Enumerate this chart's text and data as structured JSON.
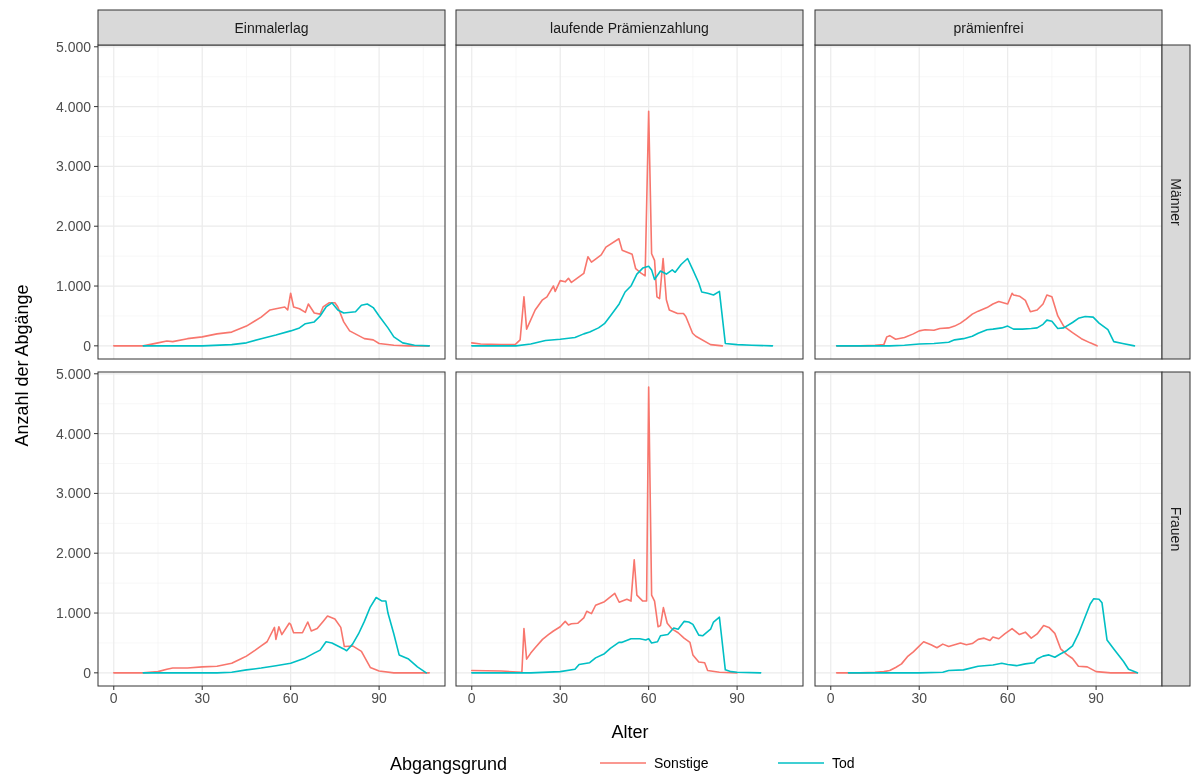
{
  "chart_data": [
    {
      "type": "line",
      "title": "Einmalerlag",
      "xlim": [
        -5.35,
        112.35
      ],
      "ylim": [
        -220,
        5030
      ],
      "xticks": [
        0,
        30,
        60,
        90
      ],
      "yticks": [
        0,
        {
          "value": 1000,
          "label": "1.000"
        },
        {
          "value": 2000,
          "label": "2.000"
        },
        {
          "value": 3000,
          "label": "3.000"
        },
        {
          "value": 4000,
          "label": "4.000"
        },
        {
          "value": 5000,
          "label": "5.000"
        }
      ],
      "grid": true,
      "tick_labels": "y",
      "series": [
        {
          "color": "#f8766d",
          "x": [
            0,
            10,
            15,
            18,
            20,
            25,
            30,
            35,
            40,
            45,
            50,
            53,
            55,
            58,
            59,
            60,
            61,
            63,
            65,
            66,
            68,
            70,
            71,
            73,
            75,
            76,
            78,
            80,
            85,
            88,
            90,
            95,
            100,
            107
          ],
          "values": [
            0,
            0,
            50,
            80,
            70,
            120,
            150,
            200,
            230,
            330,
            480,
            600,
            620,
            650,
            600,
            880,
            650,
            620,
            560,
            700,
            550,
            530,
            650,
            720,
            720,
            650,
            400,
            250,
            120,
            100,
            40,
            10,
            0,
            0
          ]
        },
        {
          "color": "#00bfc4",
          "x": [
            10,
            30,
            40,
            45,
            50,
            55,
            60,
            63,
            65,
            68,
            70,
            72,
            74,
            76,
            78,
            82,
            84,
            86,
            88,
            90,
            93,
            95,
            98,
            102,
            107
          ],
          "values": [
            0,
            0,
            20,
            50,
            120,
            180,
            250,
            300,
            370,
            400,
            500,
            650,
            720,
            600,
            550,
            570,
            680,
            700,
            640,
            500,
            300,
            150,
            50,
            10,
            0
          ]
        }
      ]
    },
    {
      "type": "line",
      "title": "laufende Prämienzahlung",
      "xlim": [
        -5.35,
        112.35
      ],
      "ylim": [
        -220,
        5030
      ],
      "xticks": [
        0,
        30,
        60,
        90
      ],
      "yticks": [
        0,
        1000,
        2000,
        3000,
        4000,
        5000
      ],
      "grid": true,
      "tick_labels": false,
      "series": [
        {
          "color": "#f8766d",
          "x": [
            0,
            3,
            10,
            14.7,
            16.4,
            17.7,
            18.6,
            21.5,
            24,
            25.5,
            27.7,
            28.3,
            30,
            31.7,
            32.8,
            33.8,
            38,
            39.4,
            40.6,
            42,
            43.9,
            45.5,
            49.9,
            51,
            54.4,
            55.6,
            57.3,
            58.8,
            60,
            61,
            62,
            62.8,
            63.7,
            64.9,
            66,
            67,
            69.8,
            71.8,
            72.6,
            74.9,
            76,
            81,
            85
          ],
          "values": [
            50,
            30,
            20,
            20,
            100,
            820,
            280,
            600,
            770,
            820,
            1000,
            910,
            1090,
            1070,
            1130,
            1060,
            1210,
            1490,
            1400,
            1450,
            1520,
            1650,
            1790,
            1600,
            1530,
            1290,
            1220,
            1170,
            3920,
            1540,
            1430,
            820,
            790,
            1460,
            770,
            600,
            540,
            540,
            490,
            210,
            160,
            20,
            0
          ]
        },
        {
          "color": "#00bfc4",
          "x": [
            0,
            15,
            20,
            25,
            30,
            35,
            38,
            40,
            43,
            45,
            47,
            50,
            52,
            54,
            56,
            58,
            60,
            61,
            62,
            64,
            66,
            68,
            69,
            71,
            73.2,
            75,
            77,
            78,
            80,
            82,
            84,
            86,
            90,
            95,
            102
          ],
          "values": [
            0,
            0,
            30,
            90,
            110,
            140,
            200,
            230,
            300,
            370,
            500,
            700,
            900,
            1000,
            1200,
            1300,
            1330,
            1270,
            1110,
            1250,
            1200,
            1270,
            1230,
            1360,
            1460,
            1270,
            1050,
            900,
            880,
            850,
            910,
            40,
            20,
            10,
            0
          ]
        }
      ]
    },
    {
      "type": "line",
      "title": "prämienfrei",
      "subtitle": "Männer",
      "xlim": [
        -5.35,
        112.35
      ],
      "ylim": [
        -220,
        5030
      ],
      "xticks": [
        0,
        30,
        60,
        90
      ],
      "yticks": [
        0,
        1000,
        2000,
        3000,
        4000,
        5000
      ],
      "grid": true,
      "tick_labels": false,
      "series": [
        {
          "color": "#f8766d",
          "x": [
            2,
            10,
            15,
            18,
            19,
            20,
            22,
            25,
            28,
            30,
            32,
            35,
            37,
            40,
            42,
            44,
            46,
            48,
            50,
            53,
            55,
            57,
            60,
            61.5,
            62,
            64,
            66,
            67.7,
            70,
            72,
            73.3,
            75,
            77,
            79,
            82,
            85,
            88,
            90.3
          ],
          "values": [
            0,
            0,
            10,
            20,
            150,
            170,
            110,
            140,
            200,
            250,
            270,
            260,
            290,
            300,
            330,
            380,
            450,
            530,
            580,
            640,
            700,
            740,
            700,
            880,
            850,
            830,
            760,
            570,
            600,
            700,
            850,
            820,
            500,
            330,
            220,
            120,
            50,
            0
          ]
        },
        {
          "color": "#00bfc4",
          "x": [
            2,
            20,
            25,
            30,
            35,
            40,
            42,
            45,
            48,
            50,
            53,
            55,
            58,
            60,
            62,
            65,
            68,
            70,
            72,
            73.3,
            75,
            77,
            79,
            82,
            84,
            86.3,
            89,
            91,
            94,
            96,
            99,
            103
          ],
          "values": [
            0,
            0,
            10,
            30,
            40,
            60,
            100,
            120,
            160,
            210,
            270,
            280,
            300,
            330,
            280,
            280,
            290,
            300,
            360,
            430,
            410,
            290,
            300,
            390,
            460,
            490,
            480,
            380,
            270,
            70,
            40,
            0
          ]
        }
      ]
    },
    {
      "type": "line",
      "ylabel": "Anzahl der Abgänge",
      "xlim": [
        -5.35,
        112.35
      ],
      "ylim": [
        -220,
        5030
      ],
      "xticks": [
        0,
        30,
        60,
        90
      ],
      "yticks": [
        0,
        {
          "value": 1000,
          "label": "1.000"
        },
        {
          "value": 2000,
          "label": "2.000"
        },
        {
          "value": 3000,
          "label": "3.000"
        },
        {
          "value": 4000,
          "label": "4.000"
        },
        {
          "value": 5000,
          "label": "5.000"
        }
      ],
      "grid": true,
      "series": [
        {
          "color": "#f8766d",
          "x": [
            0,
            10,
            15,
            18,
            20,
            25,
            30,
            35,
            40,
            43,
            45,
            48,
            50,
            52,
            54.5,
            55,
            56,
            57,
            59.5,
            60,
            61,
            64,
            65.8,
            67,
            69,
            71,
            72.5,
            75,
            77,
            78.2,
            81,
            84,
            87,
            90,
            95,
            107
          ],
          "values": [
            0,
            0,
            20,
            60,
            80,
            80,
            100,
            110,
            160,
            230,
            280,
            380,
            450,
            520,
            760,
            560,
            770,
            640,
            830,
            810,
            670,
            670,
            850,
            700,
            740,
            860,
            950,
            900,
            760,
            440,
            450,
            360,
            90,
            30,
            0,
            0
          ]
        },
        {
          "color": "#00bfc4",
          "x": [
            10,
            35,
            40,
            45,
            50,
            55,
            60,
            65,
            68,
            70,
            72,
            74,
            76,
            78,
            79,
            81,
            83,
            85,
            87,
            89,
            91,
            92.3,
            93,
            95,
            96.8,
            100,
            103,
            106
          ],
          "values": [
            0,
            0,
            10,
            50,
            80,
            120,
            160,
            250,
            330,
            380,
            520,
            500,
            450,
            400,
            370,
            480,
            650,
            860,
            1100,
            1260,
            1200,
            1200,
            1000,
            650,
            300,
            230,
            100,
            0
          ]
        }
      ]
    },
    {
      "type": "line",
      "xlabel": "Alter",
      "legend_title": "Abgangsgrund",
      "legend": "bottom",
      "xlim": [
        -5.35,
        112.35
      ],
      "ylim": [
        -220,
        5030
      ],
      "xticks": [
        0,
        30,
        60,
        90
      ],
      "yticks": [
        0,
        1000,
        2000,
        3000,
        4000,
        5000
      ],
      "grid": true,
      "tick_labels": "x",
      "series": [
        {
          "name": "Sonstige",
          "color": "#f8766d",
          "x": [
            0,
            10,
            17,
            17.7,
            18.6,
            20,
            21.5,
            24,
            26,
            27.7,
            30,
            31.7,
            32.8,
            33.8,
            36,
            38,
            39,
            40.6,
            42,
            45,
            48.5,
            50,
            52.6,
            54,
            55.1,
            56,
            58,
            59.3,
            60,
            61,
            62,
            63.2,
            64,
            65,
            66.3,
            68,
            70,
            72,
            74,
            75,
            77,
            79,
            80,
            84,
            90
          ],
          "values": [
            40,
            30,
            10,
            740,
            230,
            330,
            420,
            560,
            640,
            700,
            770,
            860,
            800,
            820,
            830,
            920,
            1030,
            990,
            1130,
            1190,
            1330,
            1180,
            1230,
            1200,
            1890,
            1300,
            1200,
            1200,
            4780,
            1300,
            1200,
            770,
            790,
            1090,
            830,
            730,
            670,
            580,
            510,
            300,
            180,
            170,
            40,
            10,
            0
          ]
        },
        {
          "name": "Tod",
          "color": "#00bfc4",
          "x": [
            0,
            20,
            30,
            35,
            36.4,
            40,
            42,
            45,
            47,
            49.9,
            51,
            54,
            57,
            59,
            60,
            61,
            63,
            64,
            66.5,
            68.5,
            70,
            72,
            73.6,
            75,
            77,
            78.3,
            81,
            82,
            84,
            86,
            88,
            90,
            98
          ],
          "values": [
            0,
            0,
            20,
            60,
            140,
            170,
            250,
            320,
            410,
            510,
            510,
            570,
            570,
            550,
            570,
            500,
            520,
            620,
            640,
            750,
            730,
            860,
            850,
            810,
            630,
            620,
            730,
            850,
            930,
            50,
            20,
            10,
            0
          ]
        }
      ]
    },
    {
      "type": "line",
      "subtitle": "Frauen",
      "xlim": [
        -5.35,
        112.35
      ],
      "ylim": [
        -220,
        5030
      ],
      "xticks": [
        0,
        30,
        60,
        90
      ],
      "yticks": [
        0,
        1000,
        2000,
        3000,
        4000,
        5000
      ],
      "grid": true,
      "tick_labels": "x",
      "series": [
        {
          "color": "#f8766d",
          "x": [
            2,
            10,
            15,
            18,
            20,
            22,
            24,
            26,
            28,
            31.5,
            34,
            36,
            38,
            40,
            42,
            44,
            46,
            48,
            50,
            52,
            54,
            55,
            57,
            59,
            61.5,
            62,
            64,
            66,
            68,
            70,
            72.2,
            74,
            76,
            78,
            80,
            82,
            84,
            87,
            90,
            95,
            104
          ],
          "values": [
            0,
            0,
            10,
            20,
            40,
            90,
            150,
            270,
            350,
            520,
            470,
            420,
            480,
            440,
            470,
            500,
            470,
            490,
            560,
            580,
            540,
            600,
            570,
            650,
            740,
            720,
            640,
            680,
            580,
            650,
            790,
            760,
            660,
            400,
            310,
            240,
            110,
            100,
            20,
            0,
            0
          ]
        },
        {
          "color": "#00bfc4",
          "x": [
            6,
            30,
            38,
            40,
            45,
            50,
            55,
            58,
            60,
            63,
            66,
            69,
            70,
            72,
            74,
            76,
            78,
            80,
            82,
            84,
            86,
            88,
            89.2,
            91,
            92,
            93.7,
            96,
            99.3,
            101,
            104
          ],
          "values": [
            0,
            0,
            10,
            40,
            50,
            110,
            130,
            160,
            140,
            120,
            150,
            170,
            230,
            280,
            300,
            260,
            320,
            370,
            450,
            650,
            900,
            1150,
            1240,
            1230,
            1170,
            550,
            400,
            190,
            60,
            0
          ]
        }
      ]
    }
  ]
}
